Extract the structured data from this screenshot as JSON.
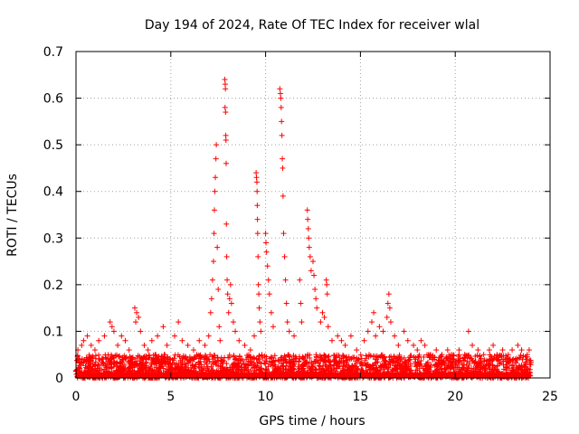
{
  "chart_data": {
    "type": "scatter",
    "title": "Day 194 of 2024, Rate Of TEC Index for receiver wlal",
    "xlabel": "GPS time / hours",
    "ylabel": "ROTI / TECUs",
    "xlim": [
      0,
      25
    ],
    "ylim": [
      0,
      0.7
    ],
    "xticks": [
      0,
      5,
      10,
      15,
      20,
      25
    ],
    "yticks": [
      0,
      0.1,
      0.2,
      0.3,
      0.4,
      0.5,
      0.6,
      0.7
    ],
    "xtick_labels": [
      "0",
      "5",
      "10",
      "15",
      "20",
      "25"
    ],
    "ytick_labels": [
      "0",
      "0.1",
      "0.2",
      "0.3",
      "0.4",
      "0.5",
      "0.6",
      "0.7"
    ],
    "grid": true,
    "marker": "+",
    "color": "#ff0000",
    "background_band": {
      "x_range": [
        0,
        24
      ],
      "typical_max": 0.05,
      "description_values": "dense near-zero ROTI values across the whole day"
    },
    "series": [
      {
        "name": "ROTI",
        "points": [
          [
            0.1,
            0.06
          ],
          [
            0.3,
            0.07
          ],
          [
            0.4,
            0.08
          ],
          [
            0.6,
            0.09
          ],
          [
            0.8,
            0.07
          ],
          [
            1.0,
            0.06
          ],
          [
            1.2,
            0.08
          ],
          [
            1.5,
            0.09
          ],
          [
            1.8,
            0.12
          ],
          [
            1.9,
            0.11
          ],
          [
            2.0,
            0.1
          ],
          [
            2.2,
            0.07
          ],
          [
            2.4,
            0.09
          ],
          [
            2.6,
            0.08
          ],
          [
            2.8,
            0.06
          ],
          [
            3.1,
            0.15
          ],
          [
            3.2,
            0.14
          ],
          [
            3.3,
            0.13
          ],
          [
            3.15,
            0.12
          ],
          [
            3.4,
            0.1
          ],
          [
            3.6,
            0.07
          ],
          [
            3.8,
            0.06
          ],
          [
            4.0,
            0.08
          ],
          [
            4.3,
            0.09
          ],
          [
            4.6,
            0.11
          ],
          [
            4.8,
            0.07
          ],
          [
            5.2,
            0.09
          ],
          [
            5.4,
            0.12
          ],
          [
            5.6,
            0.08
          ],
          [
            5.9,
            0.07
          ],
          [
            6.2,
            0.06
          ],
          [
            6.5,
            0.08
          ],
          [
            6.8,
            0.07
          ],
          [
            7.0,
            0.09
          ],
          [
            7.1,
            0.14
          ],
          [
            7.15,
            0.17
          ],
          [
            7.2,
            0.21
          ],
          [
            7.25,
            0.25
          ],
          [
            7.28,
            0.31
          ],
          [
            7.3,
            0.36
          ],
          [
            7.32,
            0.4
          ],
          [
            7.35,
            0.43
          ],
          [
            7.38,
            0.47
          ],
          [
            7.4,
            0.5
          ],
          [
            7.45,
            0.28
          ],
          [
            7.5,
            0.19
          ],
          [
            7.55,
            0.11
          ],
          [
            7.6,
            0.08
          ],
          [
            7.85,
            0.64
          ],
          [
            7.87,
            0.63
          ],
          [
            7.88,
            0.62
          ],
          [
            7.86,
            0.58
          ],
          [
            7.89,
            0.57
          ],
          [
            7.9,
            0.52
          ],
          [
            7.91,
            0.51
          ],
          [
            7.92,
            0.46
          ],
          [
            7.93,
            0.33
          ],
          [
            7.95,
            0.26
          ],
          [
            7.97,
            0.21
          ],
          [
            8.0,
            0.18
          ],
          [
            8.05,
            0.14
          ],
          [
            8.1,
            0.17
          ],
          [
            8.15,
            0.2
          ],
          [
            8.2,
            0.16
          ],
          [
            8.3,
            0.12
          ],
          [
            8.4,
            0.1
          ],
          [
            8.6,
            0.08
          ],
          [
            8.9,
            0.07
          ],
          [
            9.2,
            0.06
          ],
          [
            9.4,
            0.09
          ],
          [
            9.5,
            0.44
          ],
          [
            9.52,
            0.43
          ],
          [
            9.54,
            0.42
          ],
          [
            9.55,
            0.4
          ],
          [
            9.56,
            0.37
          ],
          [
            9.57,
            0.34
          ],
          [
            9.58,
            0.31
          ],
          [
            9.6,
            0.26
          ],
          [
            9.62,
            0.2
          ],
          [
            9.64,
            0.18
          ],
          [
            9.66,
            0.15
          ],
          [
            9.7,
            0.12
          ],
          [
            9.75,
            0.1
          ],
          [
            10.0,
            0.31
          ],
          [
            10.02,
            0.29
          ],
          [
            10.05,
            0.27
          ],
          [
            10.1,
            0.24
          ],
          [
            10.15,
            0.21
          ],
          [
            10.2,
            0.18
          ],
          [
            10.3,
            0.14
          ],
          [
            10.4,
            0.11
          ],
          [
            10.75,
            0.62
          ],
          [
            10.78,
            0.61
          ],
          [
            10.8,
            0.6
          ],
          [
            10.82,
            0.58
          ],
          [
            10.84,
            0.55
          ],
          [
            10.86,
            0.52
          ],
          [
            10.88,
            0.47
          ],
          [
            10.9,
            0.45
          ],
          [
            10.92,
            0.39
          ],
          [
            10.95,
            0.31
          ],
          [
            11.0,
            0.26
          ],
          [
            11.05,
            0.21
          ],
          [
            11.1,
            0.16
          ],
          [
            11.15,
            0.12
          ],
          [
            11.25,
            0.1
          ],
          [
            11.5,
            0.09
          ],
          [
            11.8,
            0.21
          ],
          [
            11.85,
            0.16
          ],
          [
            11.9,
            0.12
          ],
          [
            12.2,
            0.36
          ],
          [
            12.22,
            0.34
          ],
          [
            12.25,
            0.32
          ],
          [
            12.27,
            0.3
          ],
          [
            12.3,
            0.28
          ],
          [
            12.35,
            0.26
          ],
          [
            12.4,
            0.23
          ],
          [
            12.5,
            0.25
          ],
          [
            12.55,
            0.22
          ],
          [
            12.6,
            0.19
          ],
          [
            12.65,
            0.17
          ],
          [
            12.7,
            0.15
          ],
          [
            12.9,
            0.12
          ],
          [
            13.0,
            0.14
          ],
          [
            13.1,
            0.13
          ],
          [
            13.2,
            0.21
          ],
          [
            13.22,
            0.2
          ],
          [
            13.25,
            0.18
          ],
          [
            13.3,
            0.11
          ],
          [
            13.5,
            0.08
          ],
          [
            13.8,
            0.09
          ],
          [
            14.0,
            0.08
          ],
          [
            14.2,
            0.07
          ],
          [
            14.5,
            0.09
          ],
          [
            14.8,
            0.06
          ],
          [
            15.2,
            0.08
          ],
          [
            15.4,
            0.1
          ],
          [
            15.6,
            0.12
          ],
          [
            15.7,
            0.14
          ],
          [
            15.8,
            0.09
          ],
          [
            16.0,
            0.11
          ],
          [
            16.2,
            0.1
          ],
          [
            16.4,
            0.13
          ],
          [
            16.45,
            0.16
          ],
          [
            16.5,
            0.18
          ],
          [
            16.55,
            0.15
          ],
          [
            16.6,
            0.12
          ],
          [
            16.8,
            0.09
          ],
          [
            17.0,
            0.07
          ],
          [
            17.3,
            0.1
          ],
          [
            17.5,
            0.08
          ],
          [
            17.8,
            0.07
          ],
          [
            18.0,
            0.06
          ],
          [
            18.2,
            0.08
          ],
          [
            18.4,
            0.07
          ],
          [
            18.7,
            0.05
          ],
          [
            19.0,
            0.06
          ],
          [
            19.3,
            0.05
          ],
          [
            19.6,
            0.06
          ],
          [
            19.8,
            0.05
          ],
          [
            20.2,
            0.06
          ],
          [
            20.5,
            0.05
          ],
          [
            20.7,
            0.1
          ],
          [
            20.9,
            0.07
          ],
          [
            21.2,
            0.06
          ],
          [
            21.5,
            0.05
          ],
          [
            21.8,
            0.06
          ],
          [
            22.0,
            0.07
          ],
          [
            22.2,
            0.05
          ],
          [
            22.5,
            0.06
          ],
          [
            22.8,
            0.05
          ],
          [
            23.0,
            0.06
          ],
          [
            23.3,
            0.07
          ],
          [
            23.5,
            0.06
          ],
          [
            23.8,
            0.05
          ],
          [
            23.9,
            0.06
          ]
        ]
      }
    ]
  }
}
